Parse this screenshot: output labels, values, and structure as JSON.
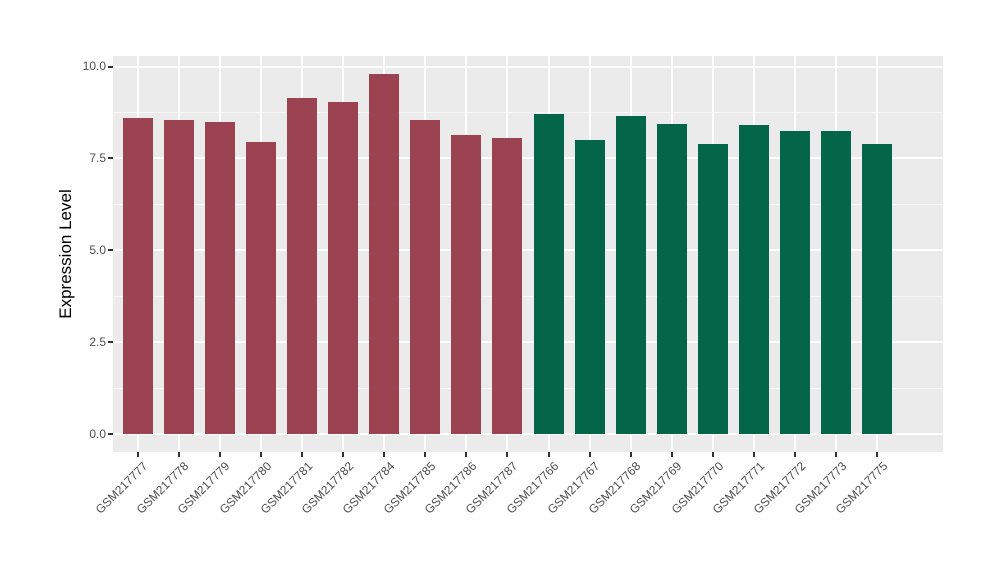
{
  "figure": {
    "background": "#FFFFFF"
  },
  "panel": {
    "background": "#EBEBEB",
    "grid_major_color": "#FFFFFF",
    "grid_minor_color": "rgba(255,255,255,0.65)",
    "tick_mark_color": "#333333",
    "axis_text_color": "#4D4D4D",
    "axis_title_color": "#000000"
  },
  "chart_data": {
    "type": "bar",
    "title": "",
    "xlabel": "",
    "ylabel": "Expression Level",
    "legend": "none",
    "grid": true,
    "ylim": [
      -0.49,
      10.29
    ],
    "yticks": [
      0,
      2.5,
      5,
      7.5,
      10
    ],
    "ytick_labels": [
      "0.0",
      "2.5",
      "5.0",
      "7.5",
      "10.0"
    ],
    "yminor": [
      1.25,
      3.75,
      6.25,
      8.75
    ],
    "bar_width_fraction": 0.7,
    "groups": [
      {
        "name": "group-1",
        "color": "#9B4351"
      },
      {
        "name": "group-2",
        "color": "#036649"
      }
    ],
    "categories": [
      "GSM217777",
      "GSM217778",
      "GSM217779",
      "GSM217780",
      "GSM217781",
      "GSM217782",
      "GSM217784",
      "GSM217785",
      "GSM217786",
      "GSM217787",
      "GSM217766",
      "GSM217767",
      "GSM217768",
      "GSM217769",
      "GSM217770",
      "GSM217771",
      "GSM217772",
      "GSM217773",
      "GSM217775"
    ],
    "bars": [
      {
        "label": "GSM217777",
        "value": 8.6,
        "group": 0
      },
      {
        "label": "GSM217778",
        "value": 8.55,
        "group": 0
      },
      {
        "label": "GSM217779",
        "value": 8.5,
        "group": 0
      },
      {
        "label": "GSM217780",
        "value": 7.95,
        "group": 0
      },
      {
        "label": "GSM217781",
        "value": 9.15,
        "group": 0
      },
      {
        "label": "GSM217782",
        "value": 9.05,
        "group": 0
      },
      {
        "label": "GSM217784",
        "value": 9.8,
        "group": 0
      },
      {
        "label": "GSM217785",
        "value": 8.55,
        "group": 0
      },
      {
        "label": "GSM217786",
        "value": 8.15,
        "group": 0
      },
      {
        "label": "GSM217787",
        "value": 8.05,
        "group": 0
      },
      {
        "label": "GSM217766",
        "value": 8.7,
        "group": 1
      },
      {
        "label": "GSM217767",
        "value": 8.0,
        "group": 1
      },
      {
        "label": "GSM217768",
        "value": 8.65,
        "group": 1
      },
      {
        "label": "GSM217769",
        "value": 8.45,
        "group": 1
      },
      {
        "label": "GSM217770",
        "value": 7.9,
        "group": 1
      },
      {
        "label": "GSM217771",
        "value": 8.4,
        "group": 1
      },
      {
        "label": "GSM217772",
        "value": 8.25,
        "group": 1
      },
      {
        "label": "GSM217773",
        "value": 8.25,
        "group": 1
      },
      {
        "label": "GSM217775",
        "value": 7.9,
        "group": 1
      }
    ]
  }
}
